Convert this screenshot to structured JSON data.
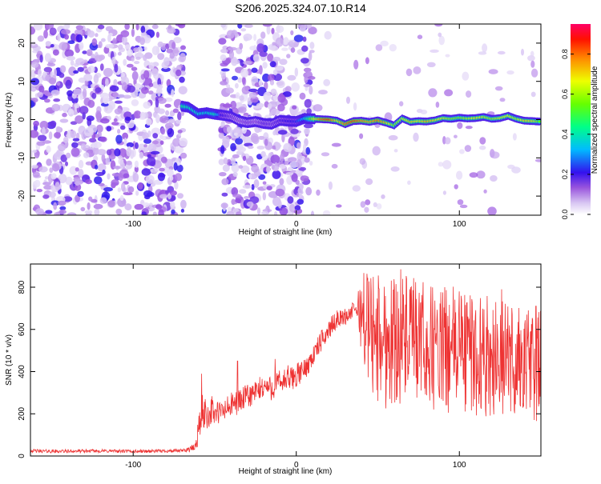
{
  "chart_data": [
    {
      "type": "heatmap",
      "title": "S206.2025.324.07.10.R14",
      "xlabel": "Height of straight line (km)",
      "ylabel": "Frequency (Hz)",
      "xlim": [
        -163,
        150
      ],
      "ylim": [
        -25,
        25
      ],
      "xticks": [
        -100,
        0,
        100
      ],
      "xtick_labels": [
        "-100",
        "0",
        "100"
      ],
      "yticks": [
        20,
        10,
        0,
        -10,
        -20
      ],
      "ytick_labels": [
        "20",
        "10",
        "0",
        "-10",
        "-20"
      ],
      "colorbar": {
        "label": "Normalized spectral amplitude",
        "range": [
          0,
          0.95
        ],
        "ticks": [
          0.0,
          0.2,
          0.4,
          0.6,
          0.8
        ],
        "tick_labels": [
          "0.0",
          "0.2",
          "0.4",
          "0.6",
          "0.8"
        ]
      },
      "noise_regions": [
        {
          "x": [
            -163,
            -69
          ],
          "density": "dense"
        },
        {
          "x": [
            -46,
            10
          ],
          "density": "dense"
        },
        {
          "x": [
            10,
            150
          ],
          "density": "sparse"
        }
      ],
      "ridge": {
        "x": [
          -70,
          -66,
          -60,
          -55,
          -50,
          -46,
          -40,
          -35,
          -30,
          -25,
          -20,
          -15,
          -10,
          -5,
          0,
          5,
          10,
          15,
          20,
          25,
          30,
          35,
          40,
          45,
          50,
          55,
          60,
          65,
          70,
          75,
          80,
          85,
          90,
          95,
          100,
          105,
          110,
          115,
          120,
          125,
          130,
          135,
          140,
          145,
          149
        ],
        "freq": [
          3.5,
          3.2,
          1.5,
          1.8,
          1.4,
          1.2,
          0.8,
          -0.3,
          -0.8,
          -0.5,
          -1.0,
          -1.2,
          -0.2,
          -0.4,
          -0.5,
          0.3,
          0.2,
          0.1,
          0.0,
          -0.3,
          -1.2,
          -0.4,
          -0.3,
          -0.6,
          -0.2,
          -0.8,
          -1.5,
          0.3,
          -0.6,
          -0.4,
          -0.5,
          -0.2,
          0.4,
          0.2,
          0.5,
          0.3,
          0.4,
          0.7,
          0.2,
          0.4,
          1.0,
          0.2,
          -0.3,
          -0.4,
          -0.5
        ],
        "amp": [
          0.45,
          0.4,
          0.38,
          0.36,
          0.42,
          0.2,
          0.15,
          0.12,
          0.14,
          0.12,
          0.16,
          0.15,
          0.18,
          0.2,
          0.22,
          0.35,
          0.62,
          0.82,
          0.88,
          0.7,
          0.82,
          0.86,
          0.8,
          0.76,
          0.82,
          0.74,
          0.58,
          0.66,
          0.72,
          0.68,
          0.76,
          0.7,
          0.66,
          0.6,
          0.58,
          0.62,
          0.7,
          0.64,
          0.6,
          0.66,
          0.68,
          0.62,
          0.72,
          0.7,
          0.55
        ]
      }
    },
    {
      "type": "line",
      "xlabel": "Height of straight line (km)",
      "ylabel": "SNR (10 * v/v)",
      "xlim": [
        -163,
        150
      ],
      "ylim": [
        0,
        910
      ],
      "xticks": [
        -100,
        0,
        100
      ],
      "xtick_labels": [
        "-100",
        "0",
        "100"
      ],
      "yticks": [
        0,
        200,
        400,
        600,
        800
      ],
      "ytick_labels": [
        "0",
        "200",
        "400",
        "600",
        "800"
      ],
      "color": "#ee3333",
      "series": [
        {
          "name": "SNR",
          "x": [
            -163,
            -150,
            -120,
            -100,
            -80,
            -70,
            -62,
            -60,
            -58,
            -56,
            -54,
            -52,
            -50,
            -45,
            -40,
            -35,
            -30,
            -25,
            -20,
            -15,
            -12,
            -10,
            -5,
            0,
            5,
            10,
            15,
            20,
            25,
            30,
            35,
            37,
            40,
            45,
            50,
            55,
            60,
            70,
            80,
            90,
            100,
            110,
            120,
            130,
            140,
            150
          ],
          "mean": [
            25,
            22,
            24,
            22,
            24,
            25,
            40,
            120,
            200,
            210,
            190,
            220,
            200,
            210,
            240,
            260,
            280,
            300,
            330,
            320,
            340,
            350,
            360,
            380,
            410,
            470,
            540,
            600,
            650,
            660,
            690,
            700,
            680,
            600,
            560,
            540,
            560,
            550,
            520,
            500,
            510,
            480,
            470,
            460,
            440,
            430
          ],
          "spread": [
            8,
            8,
            8,
            8,
            8,
            8,
            20,
            70,
            90,
            80,
            70,
            70,
            60,
            60,
            60,
            60,
            60,
            60,
            60,
            60,
            60,
            60,
            60,
            60,
            50,
            50,
            50,
            50,
            40,
            40,
            40,
            40,
            200,
            300,
            320,
            320,
            320,
            300,
            300,
            300,
            300,
            300,
            280,
            280,
            280,
            280
          ],
          "peaks": [
            [
              -58,
              390
            ],
            [
              -36,
              450
            ],
            [
              -13,
              460
            ],
            [
              -5,
              430
            ],
            [
              64,
              885
            ],
            [
              70,
              800
            ],
            [
              100,
              780
            ],
            [
              126,
              790
            ],
            [
              147,
              710
            ]
          ]
        }
      ]
    }
  ]
}
